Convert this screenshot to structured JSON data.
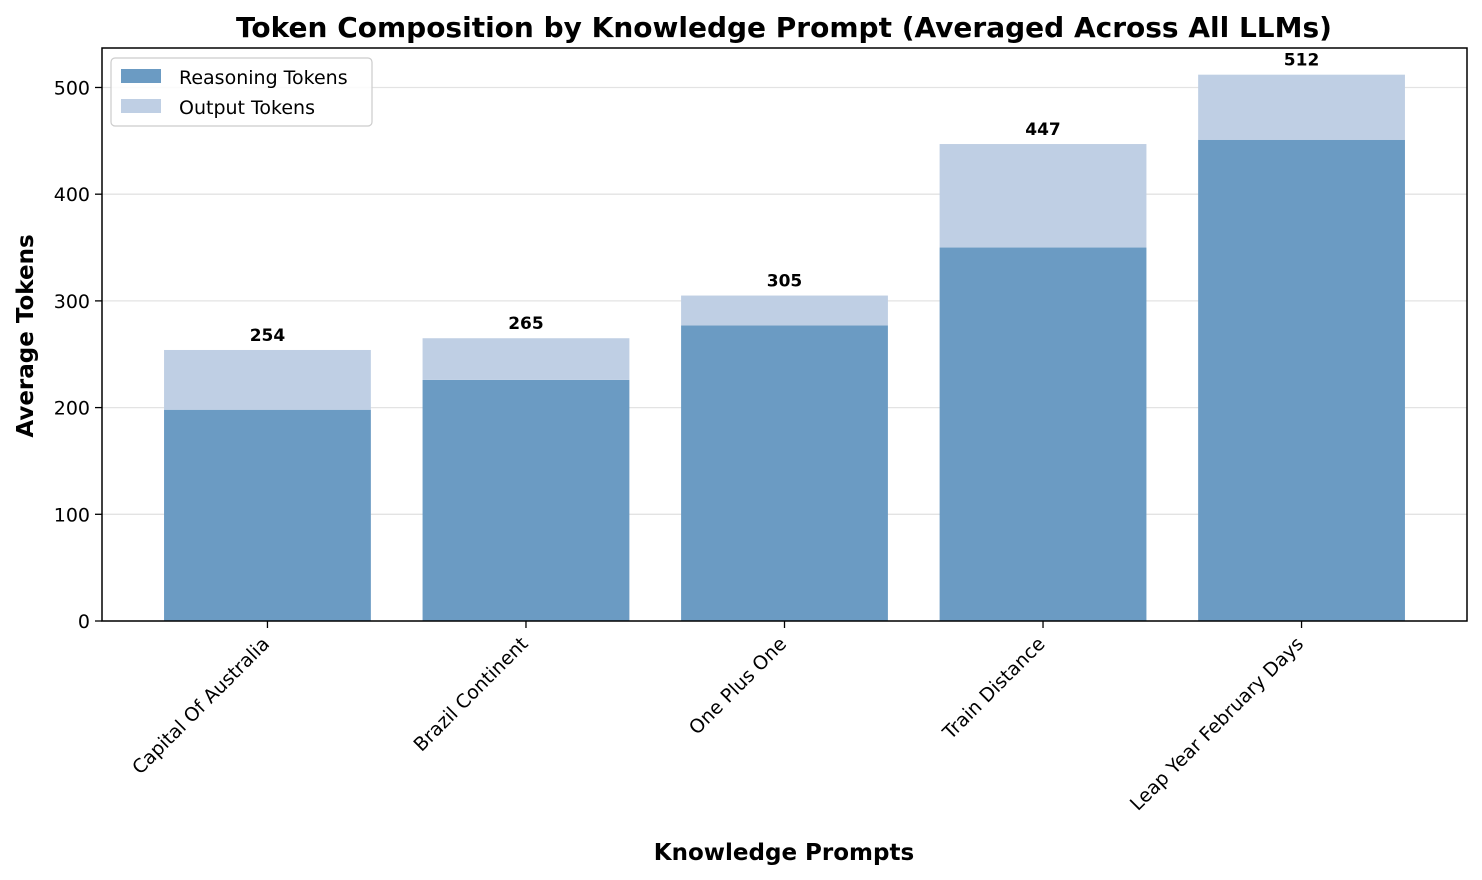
{
  "chart_data": {
    "type": "bar",
    "stacked": true,
    "title": "Token Composition by Knowledge Prompt (Averaged Across All LLMs)",
    "xlabel": "Knowledge Prompts",
    "ylabel": "Average Tokens",
    "categories": [
      "Capital Of Australia",
      "Brazil Continent",
      "One Plus One",
      "Train Distance",
      "Leap Year February Days"
    ],
    "series": [
      {
        "name": "Reasoning Tokens",
        "color": "#6b9bc3",
        "values": [
          198,
          226,
          277,
          350,
          451
        ]
      },
      {
        "name": "Output Tokens",
        "color": "#bfcfe4",
        "values": [
          56,
          39,
          28,
          97,
          61
        ]
      }
    ],
    "totals": [
      "254",
      "265",
      "305",
      "447",
      "512"
    ],
    "ylim": [
      0,
      537
    ],
    "yticks": [
      0,
      100,
      200,
      300,
      400,
      500
    ],
    "grid": "horizontal",
    "legend_position": "top-left"
  }
}
